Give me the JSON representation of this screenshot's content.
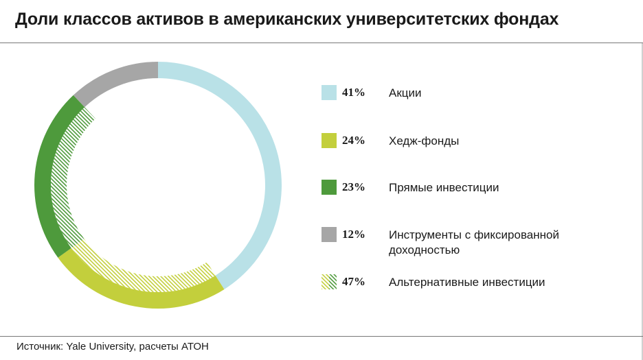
{
  "title": "Доли классов активов в американских университетских фондах",
  "source": "Источник: Yale University, расчеты АТОН",
  "colors": {
    "equities": "#b9e1e7",
    "hedge": "#c3cf3c",
    "private": "#4e9a3c",
    "fixed": "#a6a6a6",
    "text": "#1a1a1a",
    "rule": "#777777"
  },
  "legend": [
    {
      "pct": "41%",
      "label": "Акции",
      "color": "#b9e1e7",
      "hatched": false
    },
    {
      "pct": "24%",
      "label": "Хедж-фонды",
      "color": "#c3cf3c",
      "hatched": false
    },
    {
      "pct": "23%",
      "label": "Прямые инвестиции",
      "color": "#4e9a3c",
      "hatched": false
    },
    {
      "pct": "12%",
      "label": "Инструменты с фиксированной доходностью",
      "color": "#a6a6a6",
      "hatched": false
    },
    {
      "pct": "47%",
      "label": "Альтернативные инвестиции",
      "color": "#c3cf3c",
      "hatched": true
    }
  ],
  "chart_data": {
    "type": "pie",
    "variant": "donut",
    "start": "top, clockwise",
    "series": [
      {
        "name": "Акции",
        "value": 41,
        "color": "#b9e1e7"
      },
      {
        "name": "Хедж-фонды",
        "value": 24,
        "color": "#c3cf3c"
      },
      {
        "name": "Прямые инвестиции",
        "value": 23,
        "color": "#4e9a3c"
      },
      {
        "name": "Инструменты с фиксированной доходностью",
        "value": 12,
        "color": "#a6a6a6"
      }
    ],
    "inner_ring": {
      "name": "Альтернативные инвестиции",
      "value": 47,
      "spans": [
        "Хедж-фонды",
        "Прямые инвестиции"
      ],
      "style": "hatched"
    }
  }
}
